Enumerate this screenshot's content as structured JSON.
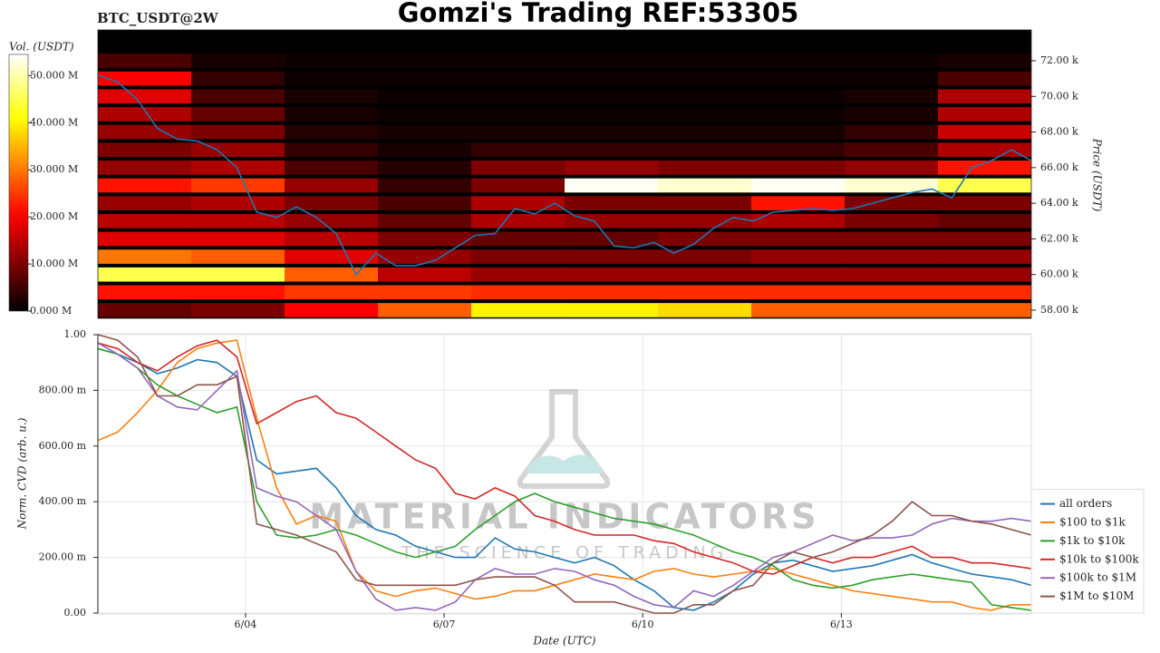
{
  "chart_data": [
    {
      "type": "heatmap",
      "title": "Gomzi's Trading REF:53305",
      "subtitle": "BTC_USDT@2W",
      "colormap": "hot",
      "colorbar_label": "Vol. (USDT)",
      "ylabel": "Price (USDT)",
      "xlim": [
        0,
        14.1
      ],
      "ylim": [
        57540,
        73730
      ],
      "yticks": [
        {
          "value": 58000,
          "label": "58.00 k"
        },
        {
          "value": 60000,
          "label": "60.00 k"
        },
        {
          "value": 62000,
          "label": "62.00 k"
        },
        {
          "value": 64000,
          "label": "64.00 k"
        },
        {
          "value": 66000,
          "label": "66.00 k"
        },
        {
          "value": 68000,
          "label": "68.00 k"
        },
        {
          "value": 70000,
          "label": "70.00 k"
        },
        {
          "value": 72000,
          "label": "72.00 k"
        }
      ],
      "zlim": [
        0,
        54500000
      ],
      "zticks": [
        {
          "value": 0,
          "label": "0.000 M"
        },
        {
          "value": 10000000,
          "label": "10.000 M"
        },
        {
          "value": 20000000,
          "label": "20.000 M"
        },
        {
          "value": 30000000,
          "label": "30.000 M"
        },
        {
          "value": 40000000,
          "label": "40.000 M"
        },
        {
          "value": 50000000,
          "label": "50.000 M"
        }
      ],
      "xbins": [
        0,
        1.41,
        2.82,
        4.23,
        5.64,
        7.05,
        8.46,
        9.87,
        11.28,
        12.69,
        14.1
      ],
      "ybins": [
        57500,
        58500,
        59500,
        60500,
        61500,
        62500,
        63500,
        64500,
        65500,
        66500,
        67500,
        68500,
        69500,
        70500,
        71500,
        72500
      ],
      "z": [
        [
          8000000.0,
          10000000.0,
          20000000.0,
          28000000.0,
          40000000.0,
          40000000.0,
          38000000.0,
          28000000.0,
          28000000.0,
          28000000.0
        ],
        [
          22000000.0,
          22000000.0,
          25000000.0,
          25000000.0,
          24000000.0,
          24000000.0,
          24000000.0,
          24000000.0,
          24000000.0,
          24000000.0
        ],
        [
          45000000.0,
          45000000.0,
          28000000.0,
          15000000.0,
          12000000.0,
          12000000.0,
          12000000.0,
          12000000.0,
          12000000.0,
          12000000.0
        ],
        [
          30000000.0,
          28000000.0,
          18000000.0,
          12000000.0,
          10000000.0,
          10000000.0,
          10000000.0,
          12000000.0,
          12000000.0,
          12000000.0
        ],
        [
          18000000.0,
          18000000.0,
          15000000.0,
          10000000.0,
          8000000.0,
          8000000.0,
          10000000.0,
          10000000.0,
          10000000.0,
          10000000.0
        ],
        [
          15000000.0,
          15000000.0,
          12000000.0,
          8000000.0,
          14000000.0,
          12000000.0,
          12000000.0,
          14000000.0,
          10000000.0,
          8000000.0
        ],
        [
          12000000.0,
          14000000.0,
          10000000.0,
          6000000.0,
          14000000.0,
          10000000.0,
          10000000.0,
          22000000.0,
          10000000.0,
          10000000.0
        ],
        [
          22000000.0,
          25000000.0,
          12000000.0,
          4000000.0,
          10000000.0,
          54000000.0,
          52000000.0,
          54000000.0,
          52000000.0,
          45000000.0
        ],
        [
          12000000.0,
          14000000.0,
          6000000.0,
          3000000.0,
          10000000.0,
          12000000.0,
          10000000.0,
          10000000.0,
          12000000.0,
          22000000.0
        ],
        [
          10000000.0,
          12000000.0,
          4000000.0,
          2000000.0,
          4000000.0,
          4000000.0,
          4000000.0,
          4000000.0,
          6000000.0,
          14000000.0
        ],
        [
          12000000.0,
          10000000.0,
          3000000.0,
          2000000.0,
          2000000.0,
          2000000.0,
          2000000.0,
          2000000.0,
          4000000.0,
          16000000.0
        ],
        [
          14000000.0,
          8000000.0,
          2000000.0,
          1000000.0,
          1000000.0,
          1000000.0,
          1000000.0,
          1000000.0,
          2000000.0,
          14000000.0
        ],
        [
          18000000.0,
          6000000.0,
          2000000.0,
          1000000.0,
          1000000.0,
          1000000.0,
          1000000.0,
          1000000.0,
          2000000.0,
          14000000.0
        ],
        [
          20000000.0,
          4000000.0,
          1000000.0,
          1000000.0,
          1000000.0,
          1000000.0,
          1000000.0,
          1000000.0,
          1000000.0,
          6000000.0
        ],
        [
          6000000.0,
          2000000.0,
          1000000.0,
          1000000.0,
          1000000.0,
          1000000.0,
          1000000.0,
          1000000.0,
          1000000.0,
          2000000.0
        ]
      ],
      "x": [
        0,
        0.3,
        0.6,
        0.9,
        1.2,
        1.5,
        1.8,
        2.1,
        2.4,
        2.7,
        3,
        3.3,
        3.6,
        3.9,
        4.2,
        4.5,
        4.8,
        5.1,
        5.4,
        5.7,
        6,
        6.3,
        6.6,
        6.9,
        7.2,
        7.5,
        7.8,
        8.1,
        8.4,
        8.7,
        9,
        9.3,
        9.6,
        9.9,
        10.2,
        10.5,
        10.8,
        11.1,
        11.4,
        11.7,
        12,
        12.3,
        12.6,
        12.9,
        13.2,
        13.5,
        13.8,
        14.1
      ],
      "line": {
        "color": "#1f77b4",
        "values": [
          71200,
          70800,
          69800,
          68200,
          67600,
          67500,
          67000,
          66000,
          63500,
          63200,
          63800,
          63200,
          62300,
          60000,
          61200,
          60500,
          60500,
          60800,
          61500,
          62200,
          62300,
          63700,
          63400,
          64000,
          63300,
          63000,
          61600,
          61500,
          61800,
          61200,
          61700,
          62600,
          63200,
          63000,
          63500,
          63600,
          63700,
          63600,
          63700,
          64000,
          64300,
          64600,
          64800,
          64300,
          66000,
          66400,
          67000,
          66400
        ]
      }
    },
    {
      "type": "line",
      "xlabel": "Date (UTC)",
      "ylabel": "Norm. CVD (arb. u.)",
      "grid": true,
      "legend": "lower right",
      "annotations": [
        "MATERIAL INDICATORS",
        "THE SCIENCE OF TRADING"
      ],
      "xlim": [
        0,
        14.1
      ],
      "ylim": [
        0,
        1
      ],
      "xticks": [
        {
          "value": 2.23,
          "label": "6/04"
        },
        {
          "value": 5.23,
          "label": "6/07"
        },
        {
          "value": 8.23,
          "label": "6/10"
        },
        {
          "value": 11.23,
          "label": "6/13"
        }
      ],
      "yticks": [
        {
          "value": 0,
          "label": "0.00"
        },
        {
          "value": 0.2,
          "label": "200.00 m"
        },
        {
          "value": 0.4,
          "label": "400.00 m"
        },
        {
          "value": 0.6,
          "label": "600.00 m"
        },
        {
          "value": 0.8,
          "label": "800.00 m"
        },
        {
          "value": 1,
          "label": "1.00"
        }
      ],
      "x": [
        0,
        0.3,
        0.6,
        0.9,
        1.2,
        1.5,
        1.8,
        2.1,
        2.4,
        2.7,
        3,
        3.3,
        3.6,
        3.9,
        4.2,
        4.5,
        4.8,
        5.1,
        5.4,
        5.7,
        6,
        6.3,
        6.6,
        6.9,
        7.2,
        7.5,
        7.8,
        8.1,
        8.4,
        8.7,
        9,
        9.3,
        9.6,
        9.9,
        10.2,
        10.5,
        10.8,
        11.1,
        11.4,
        11.7,
        12,
        12.3,
        12.6,
        12.9,
        13.2,
        13.5,
        13.8,
        14.1
      ],
      "series": [
        {
          "name": "all orders",
          "color": "#1f77b4",
          "values": [
            0.95,
            0.93,
            0.9,
            0.86,
            0.88,
            0.91,
            0.9,
            0.85,
            0.55,
            0.5,
            0.51,
            0.52,
            0.45,
            0.35,
            0.3,
            0.28,
            0.24,
            0.22,
            0.2,
            0.2,
            0.27,
            0.23,
            0.22,
            0.2,
            0.18,
            0.2,
            0.17,
            0.12,
            0.08,
            0.02,
            0.01,
            0.04,
            0.08,
            0.14,
            0.18,
            0.19,
            0.17,
            0.15,
            0.16,
            0.17,
            0.19,
            0.21,
            0.18,
            0.16,
            0.14,
            0.13,
            0.12,
            0.1
          ]
        },
        {
          "name": "$100 to $1k",
          "color": "#ff7f0e",
          "values": [
            0.62,
            0.65,
            0.72,
            0.8,
            0.9,
            0.95,
            0.97,
            0.98,
            0.7,
            0.45,
            0.32,
            0.35,
            0.33,
            0.15,
            0.08,
            0.06,
            0.08,
            0.09,
            0.07,
            0.05,
            0.06,
            0.08,
            0.08,
            0.1,
            0.12,
            0.14,
            0.13,
            0.12,
            0.15,
            0.16,
            0.14,
            0.13,
            0.14,
            0.15,
            0.16,
            0.14,
            0.12,
            0.1,
            0.08,
            0.07,
            0.06,
            0.05,
            0.04,
            0.04,
            0.02,
            0.01,
            0.03,
            0.03
          ]
        },
        {
          "name": "$1k to $10k",
          "color": "#2ca02c",
          "values": [
            0.95,
            0.93,
            0.88,
            0.82,
            0.78,
            0.75,
            0.72,
            0.74,
            0.4,
            0.28,
            0.27,
            0.28,
            0.3,
            0.28,
            0.25,
            0.22,
            0.2,
            0.22,
            0.24,
            0.3,
            0.35,
            0.4,
            0.43,
            0.4,
            0.38,
            0.36,
            0.34,
            0.33,
            0.32,
            0.3,
            0.28,
            0.25,
            0.22,
            0.2,
            0.17,
            0.12,
            0.1,
            0.09,
            0.1,
            0.12,
            0.13,
            0.14,
            0.13,
            0.12,
            0.11,
            0.03,
            0.02,
            0.01
          ]
        },
        {
          "name": "$10k to $100k",
          "color": "#d62728",
          "values": [
            0.97,
            0.95,
            0.9,
            0.87,
            0.92,
            0.96,
            0.98,
            0.92,
            0.68,
            0.72,
            0.76,
            0.78,
            0.72,
            0.7,
            0.65,
            0.6,
            0.55,
            0.52,
            0.43,
            0.41,
            0.45,
            0.42,
            0.35,
            0.33,
            0.3,
            0.28,
            0.28,
            0.28,
            0.26,
            0.25,
            0.22,
            0.2,
            0.18,
            0.15,
            0.14,
            0.17,
            0.2,
            0.18,
            0.2,
            0.2,
            0.22,
            0.24,
            0.2,
            0.2,
            0.18,
            0.18,
            0.17,
            0.16
          ]
        },
        {
          "name": "$100k to $1M",
          "color": "#9467bd",
          "values": [
            0.97,
            0.93,
            0.88,
            0.78,
            0.74,
            0.73,
            0.8,
            0.87,
            0.45,
            0.42,
            0.4,
            0.35,
            0.3,
            0.15,
            0.05,
            0.01,
            0.02,
            0.01,
            0.04,
            0.12,
            0.16,
            0.14,
            0.14,
            0.16,
            0.15,
            0.12,
            0.1,
            0.06,
            0.03,
            0.02,
            0.08,
            0.06,
            0.1,
            0.15,
            0.2,
            0.22,
            0.25,
            0.28,
            0.26,
            0.27,
            0.27,
            0.28,
            0.32,
            0.34,
            0.33,
            0.33,
            0.34,
            0.33
          ]
        },
        {
          "name": "$1M to $10M",
          "color": "#8c564b",
          "values": [
            1.0,
            0.98,
            0.92,
            0.78,
            0.78,
            0.82,
            0.82,
            0.85,
            0.32,
            0.3,
            0.28,
            0.25,
            0.22,
            0.12,
            0.1,
            0.1,
            0.1,
            0.1,
            0.1,
            0.12,
            0.13,
            0.13,
            0.13,
            0.1,
            0.04,
            0.04,
            0.04,
            0.02,
            0.0,
            0.0,
            0.03,
            0.03,
            0.08,
            0.1,
            0.18,
            0.22,
            0.2,
            0.22,
            0.25,
            0.28,
            0.33,
            0.4,
            0.35,
            0.35,
            0.33,
            0.32,
            0.3,
            0.28
          ]
        }
      ]
    }
  ]
}
